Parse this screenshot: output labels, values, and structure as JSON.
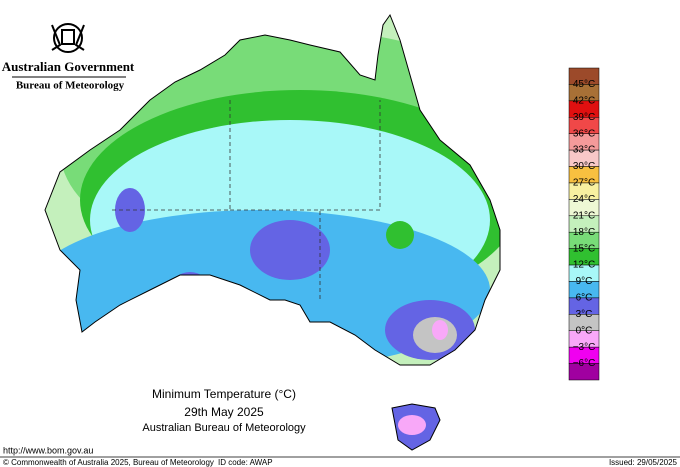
{
  "header": {
    "government": "Australian Government",
    "agency": "Bureau of Meteorology"
  },
  "map": {
    "title": "Minimum Temperature (°C)",
    "date": "29th May 2025",
    "source": "Australian Bureau of Meteorology"
  },
  "legend": {
    "labels": [
      "45°C",
      "42°C",
      "39°C",
      "36°C",
      "33°C",
      "30°C",
      "27°C",
      "24°C",
      "21°C",
      "18°C",
      "15°C",
      "12°C",
      "9°C",
      "6°C",
      "3°C",
      "0°C",
      "−3°C",
      "−6°C"
    ],
    "colors": [
      "#9c4a2a",
      "#a87036",
      "#e01010",
      "#f04848",
      "#f59a9a",
      "#f8c8c8",
      "#f8c040",
      "#f8f0a0",
      "#eef8d4",
      "#c4f0bc",
      "#78dc78",
      "#30c030",
      "#a8f8f8",
      "#48b8f0",
      "#6464e4",
      "#c4c4c4",
      "#f8a8f8",
      "#f000f0",
      "#a000a0"
    ]
  },
  "footer": {
    "url": "http://www.bom.gov.au",
    "copyright": "© Commonwealth of Australia 2025, Bureau of Meteorology",
    "id_code": "ID code: AWAP",
    "issued": "Issued: 29/05/2025"
  }
}
